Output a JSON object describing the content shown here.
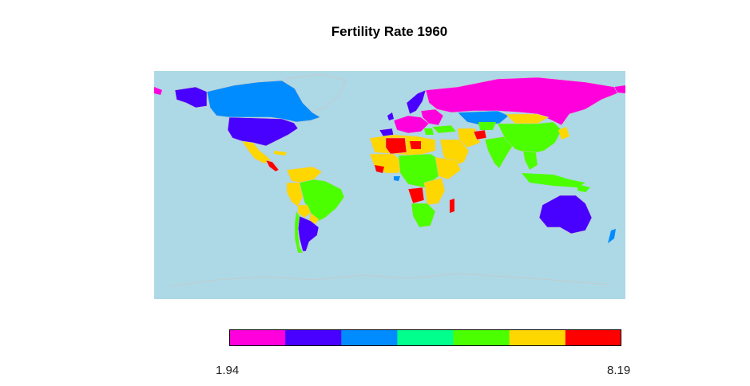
{
  "title": "Fertility Rate 1960",
  "map": {
    "ocean_color": "#ADD8E6",
    "border_color": "#C8C8C8",
    "palette": [
      "#FF00DD",
      "#4800FF",
      "#008CFF",
      "#00FF8C",
      "#4CFF00",
      "#FFD700",
      "#FF0000"
    ]
  },
  "legend": {
    "min_label": "1.94",
    "max_label": "8.19",
    "min_value": 1.94,
    "max_value": 8.19,
    "bins": 7
  }
}
